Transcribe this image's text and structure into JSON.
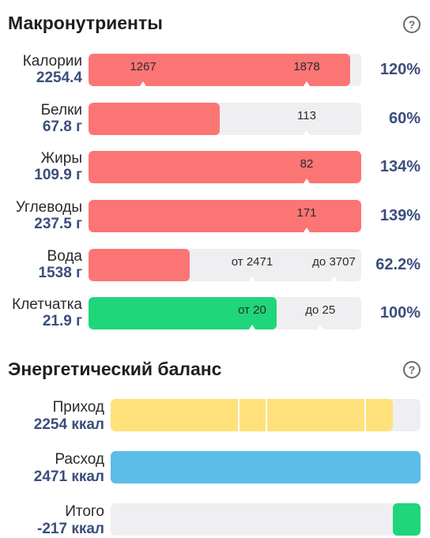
{
  "macro": {
    "title": "Макронутриенты",
    "help_symbol": "?",
    "rows": [
      {
        "name": "Калории",
        "value": "2254.4",
        "percent": "120%",
        "fill_fraction": 0.96,
        "fill_color": "#fc7575",
        "markers": [
          {
            "text": "1267",
            "pos": 0.2
          },
          {
            "text": "1878",
            "pos": 0.8
          }
        ]
      },
      {
        "name": "Белки",
        "value": "67.8 г",
        "percent": "60%",
        "fill_fraction": 0.48,
        "fill_color": "#fc7575",
        "markers": [
          {
            "text": "113",
            "pos": 0.8
          }
        ]
      },
      {
        "name": "Жиры",
        "value": "109.9 г",
        "percent": "134%",
        "fill_fraction": 1.0,
        "fill_color": "#fc7575",
        "markers": [
          {
            "text": "82",
            "pos": 0.8
          }
        ]
      },
      {
        "name": "Углеводы",
        "value": "237.5 г",
        "percent": "139%",
        "fill_fraction": 1.0,
        "fill_color": "#fc7575",
        "markers": [
          {
            "text": "171",
            "pos": 0.8
          }
        ]
      },
      {
        "name": "Вода",
        "value": "1538 г",
        "percent": "62.2%",
        "fill_fraction": 0.37,
        "fill_color": "#fc7575",
        "markers": [
          {
            "text": "от 2471",
            "pos": 0.6
          },
          {
            "text": "до 3707",
            "pos": 0.9
          }
        ]
      },
      {
        "name": "Клетчатка",
        "value": "21.9 г",
        "percent": "100%",
        "fill_fraction": 0.69,
        "fill_color": "#1fd67a",
        "markers": [
          {
            "text": "от 20",
            "pos": 0.6
          },
          {
            "text": "до 25",
            "pos": 0.85
          }
        ]
      }
    ]
  },
  "energy": {
    "title": "Энергетический баланс",
    "help_symbol": "?",
    "rows": [
      {
        "name": "Приход",
        "value": "2254 ккал",
        "fill_fraction": 0.91,
        "fill_color": "#fee17a",
        "segments": [
          0.41,
          0.5,
          0.82
        ]
      },
      {
        "name": "Расход",
        "value": "2471 ккал",
        "fill_fraction": 1.0,
        "fill_color": "#5bbde8",
        "segments": []
      },
      {
        "name": "Итого",
        "value": "-217 ккал",
        "fill_fraction": 0.09,
        "fill_color": "#1fd67a",
        "align": "right",
        "segments": []
      }
    ]
  }
}
